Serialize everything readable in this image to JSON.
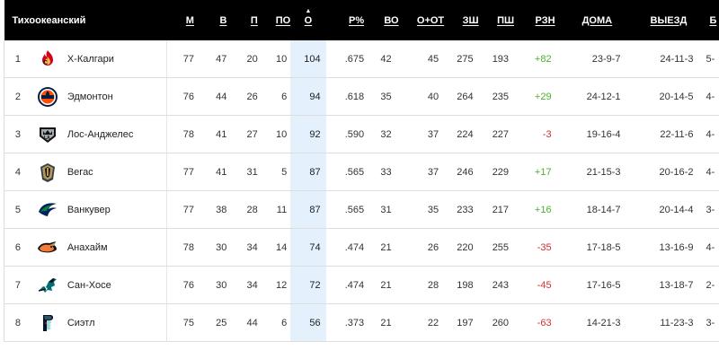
{
  "table": {
    "title": "Тихоокеанский",
    "columns": [
      "М",
      "В",
      "П",
      "ПО",
      "О",
      "Р%",
      "ВО",
      "О+ОТ",
      "ЗШ",
      "ПШ",
      "РЗН",
      "ДОМА",
      "ВЫЕЗД",
      "Б"
    ],
    "sorted_column": "О",
    "rows": [
      {
        "rank": "1",
        "team": "Х-Калгари",
        "logo": "flames-logo",
        "m": "77",
        "w": "47",
        "l": "20",
        "ot": "10",
        "pts": "104",
        "pct": ".675",
        "rw": "42",
        "row": "45",
        "gf": "275",
        "ga": "193",
        "diff": "+82",
        "home": "23-9-7",
        "away": "24-11-3",
        "b": "5-"
      },
      {
        "rank": "2",
        "team": "Эдмонтон",
        "logo": "oilers-logo",
        "m": "76",
        "w": "44",
        "l": "26",
        "ot": "6",
        "pts": "94",
        "pct": ".618",
        "rw": "35",
        "row": "40",
        "gf": "264",
        "ga": "235",
        "diff": "+29",
        "home": "24-12-1",
        "away": "20-14-5",
        "b": "4-"
      },
      {
        "rank": "3",
        "team": "Лос-Анджелес",
        "logo": "kings-logo",
        "m": "78",
        "w": "41",
        "l": "27",
        "ot": "10",
        "pts": "92",
        "pct": ".590",
        "rw": "32",
        "row": "37",
        "gf": "224",
        "ga": "227",
        "diff": "-3",
        "home": "19-16-4",
        "away": "22-11-6",
        "b": "4-"
      },
      {
        "rank": "4",
        "team": "Вегас",
        "logo": "golden-knights-logo",
        "m": "77",
        "w": "41",
        "l": "31",
        "ot": "5",
        "pts": "87",
        "pct": ".565",
        "rw": "33",
        "row": "37",
        "gf": "246",
        "ga": "229",
        "diff": "+17",
        "home": "21-15-3",
        "away": "20-16-2",
        "b": "4-"
      },
      {
        "rank": "5",
        "team": "Ванкувер",
        "logo": "canucks-logo",
        "m": "77",
        "w": "38",
        "l": "28",
        "ot": "11",
        "pts": "87",
        "pct": ".565",
        "rw": "31",
        "row": "35",
        "gf": "233",
        "ga": "217",
        "diff": "+16",
        "home": "18-14-7",
        "away": "20-14-4",
        "b": "3-"
      },
      {
        "rank": "6",
        "team": "Анахайм",
        "logo": "ducks-logo",
        "m": "78",
        "w": "30",
        "l": "34",
        "ot": "14",
        "pts": "74",
        "pct": ".474",
        "rw": "21",
        "row": "26",
        "gf": "220",
        "ga": "255",
        "diff": "-35",
        "home": "17-18-5",
        "away": "13-16-9",
        "b": "4-"
      },
      {
        "rank": "7",
        "team": "Сан-Хосе",
        "logo": "sharks-logo",
        "m": "76",
        "w": "30",
        "l": "34",
        "ot": "12",
        "pts": "72",
        "pct": ".474",
        "rw": "21",
        "row": "28",
        "gf": "198",
        "ga": "243",
        "diff": "-45",
        "home": "17-16-5",
        "away": "13-18-7",
        "b": "2-"
      },
      {
        "rank": "8",
        "team": "Сиэтл",
        "logo": "kraken-logo",
        "m": "75",
        "w": "25",
        "l": "44",
        "ot": "6",
        "pts": "56",
        "pct": ".373",
        "rw": "21",
        "row": "22",
        "gf": "197",
        "ga": "260",
        "diff": "-63",
        "home": "14-21-3",
        "away": "11-23-3",
        "b": "3-"
      }
    ]
  },
  "colors": {
    "header_bg": "#000000",
    "sorted_column_bg": "#e4f0fb",
    "positive": "#4caf2f",
    "negative": "#d32f2f"
  }
}
